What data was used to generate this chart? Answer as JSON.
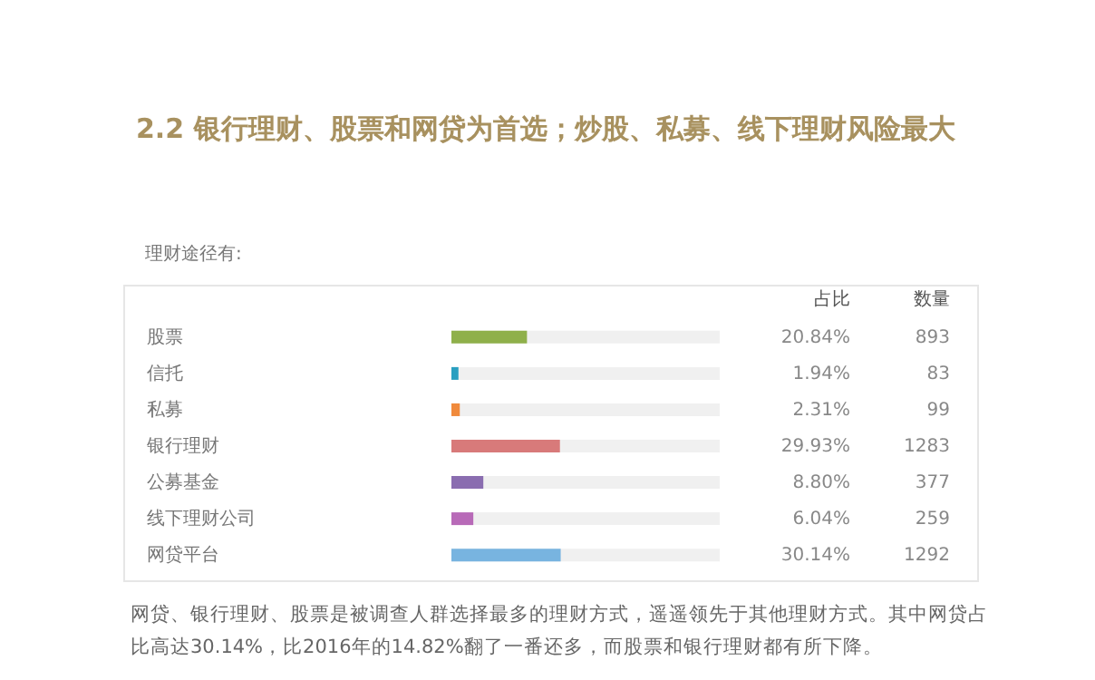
{
  "chart_data": [
    {
      "type": "bar",
      "orientation": "horizontal",
      "title": "2.2 银行理财、股票和网贷为首选；炒股、私募、线下理财风险最大",
      "subtitle": "理财途径有:",
      "categories": [
        "股票",
        "信托",
        "私募",
        "银行理财",
        "公募基金",
        "线下理财公司",
        "网贷平台"
      ],
      "xlim": [
        0,
        74
      ],
      "series": [
        {
          "name": "占比",
          "values": [
            20.84,
            1.94,
            2.31,
            29.93,
            8.8,
            6.04,
            30.14
          ],
          "value_labels": [
            "20.84%",
            "1.94%",
            "2.31%",
            "29.93%",
            "8.80%",
            "6.04%",
            "30.14%"
          ],
          "colors": [
            "#8fb04a",
            "#2a9fc0",
            "#f08a3c",
            "#d87a7a",
            "#8a6db0",
            "#b86ab8",
            "#78b4e0"
          ]
        }
      ],
      "annotations": [
        "网贷、银行理财、股票是被调查人群选择最多的理财方式，遥遥领先于其他理财方式。其中网贷占比高达30.14%，比2016年的14.82%翻了一番还多，而股票和银行理财都有所下降。"
      ]
    },
    {
      "type": "other",
      "title": "数量",
      "data_labels": true,
      "values": [
        893,
        83,
        99,
        1283,
        377,
        259,
        1292
      ]
    }
  ]
}
